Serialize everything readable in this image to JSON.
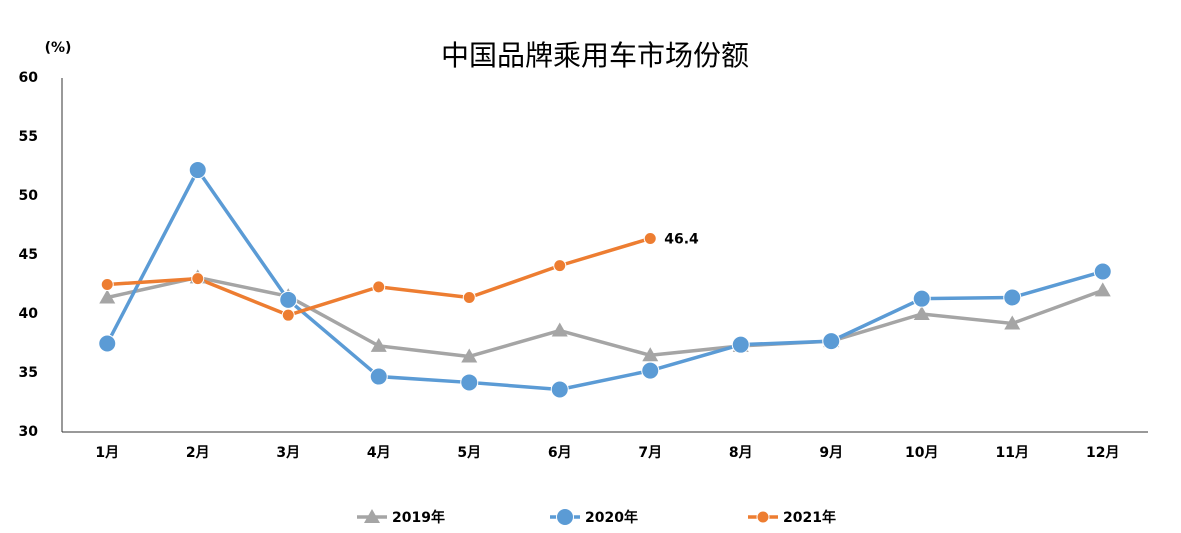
{
  "chart_data": {
    "type": "line",
    "title": "中国品牌乘用车市场份额",
    "y_unit": "(%)",
    "categories": [
      "1月",
      "2月",
      "3月",
      "4月",
      "5月",
      "6月",
      "7月",
      "8月",
      "9月",
      "10月",
      "11月",
      "12月"
    ],
    "series": [
      {
        "name": "2019年",
        "color": "#a5a5a5",
        "marker": "triangle",
        "values": [
          41.4,
          43.1,
          41.5,
          37.3,
          36.4,
          38.6,
          36.5,
          37.3,
          37.7,
          40.0,
          39.2,
          42.0
        ]
      },
      {
        "name": "2020年",
        "color": "#5b9bd5",
        "marker": "circle",
        "values": [
          37.5,
          52.2,
          41.2,
          34.7,
          34.2,
          33.6,
          35.2,
          37.4,
          37.7,
          41.3,
          41.4,
          43.6
        ]
      },
      {
        "name": "2021年",
        "color": "#ed7d31",
        "marker": "circle",
        "values": [
          42.5,
          43.0,
          39.9,
          42.3,
          41.4,
          44.1,
          46.4,
          null,
          null,
          null,
          null,
          null
        ]
      }
    ],
    "labeled_point": {
      "series": 2,
      "index": 6
    },
    "ylim": [
      30,
      60
    ],
    "yticks": [
      30,
      35,
      40,
      45,
      50,
      55,
      60
    ],
    "grid": false,
    "legend": "bottom"
  }
}
